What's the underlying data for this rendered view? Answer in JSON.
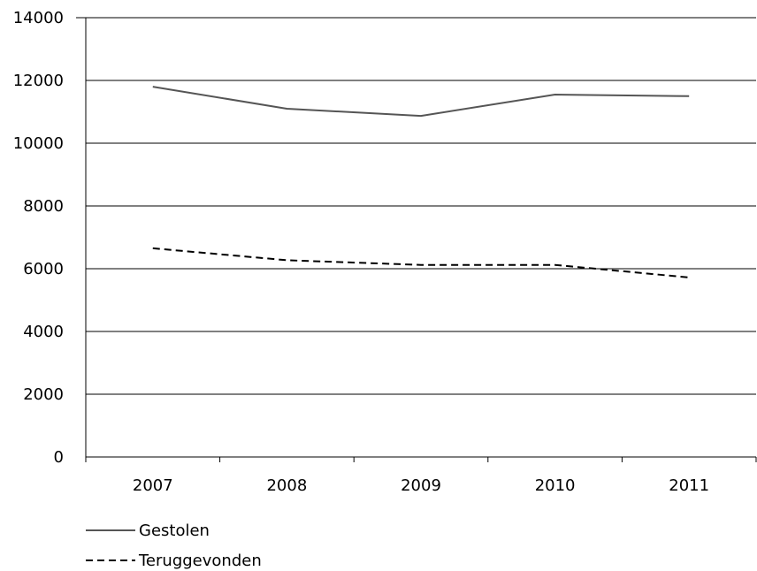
{
  "chart_data": {
    "type": "line",
    "categories": [
      "2007",
      "2008",
      "2009",
      "2010",
      "2011"
    ],
    "series": [
      {
        "name": "Gestolen",
        "values": [
          11800,
          11100,
          10870,
          11550,
          11500
        ],
        "color": "#555555",
        "dash": "solid"
      },
      {
        "name": "Teruggevonden",
        "values": [
          6650,
          6270,
          6120,
          6120,
          5720
        ],
        "color": "#000000",
        "dash": "dashed"
      }
    ],
    "yticks": [
      "0",
      "2000",
      "4000",
      "6000",
      "8000",
      "10000",
      "12000",
      "14000"
    ],
    "ylim": [
      0,
      14000
    ],
    "grid": true,
    "legend_position": "bottom-left"
  }
}
